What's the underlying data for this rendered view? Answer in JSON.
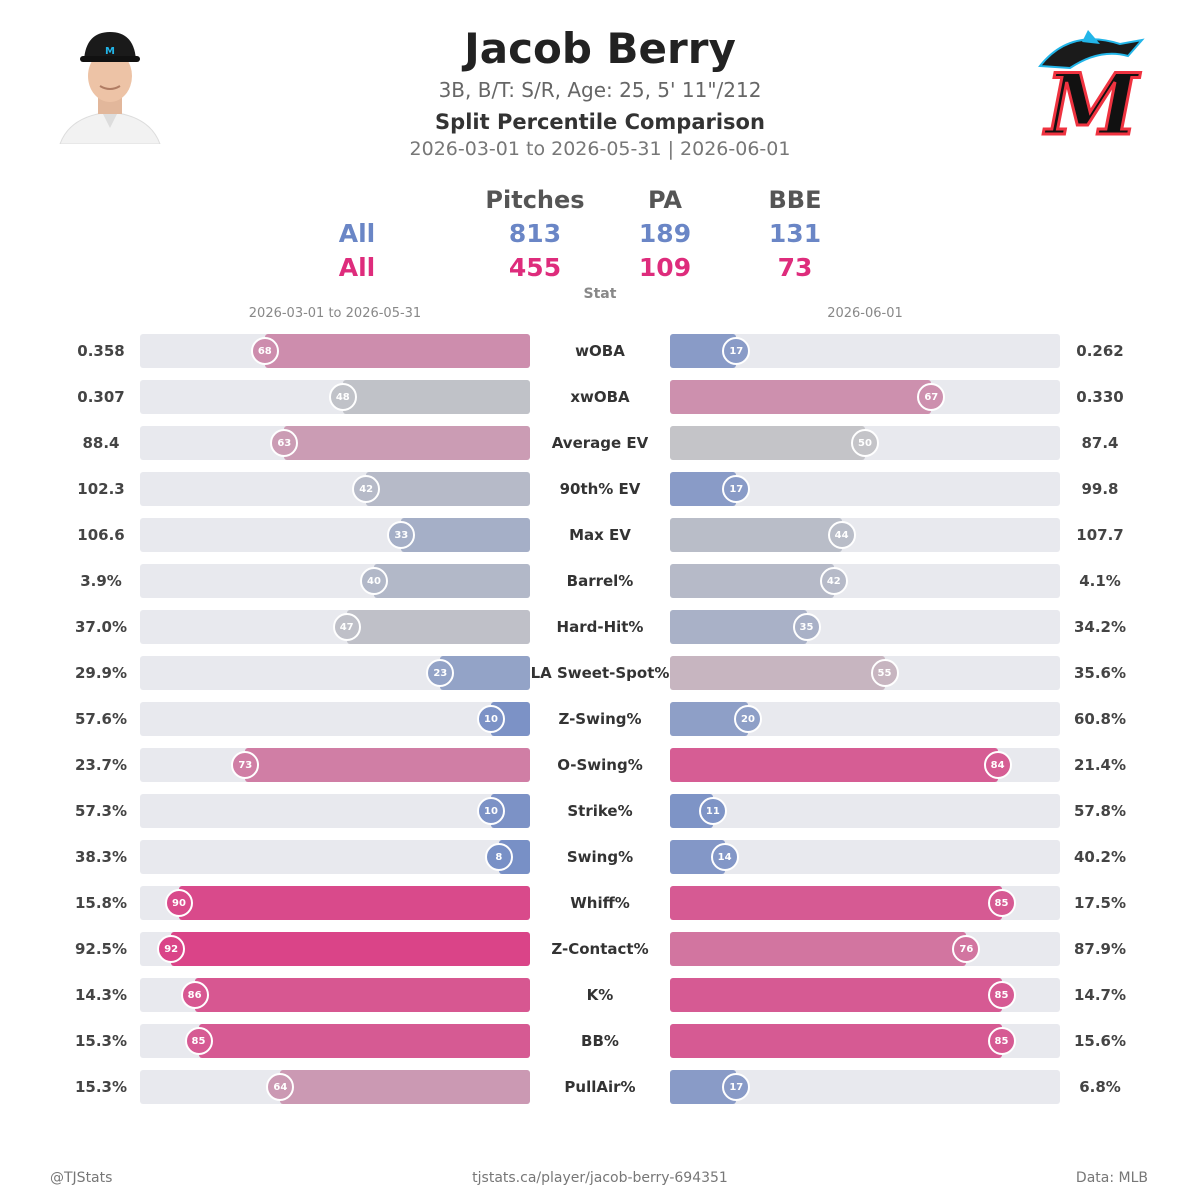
{
  "header": {
    "player_name": "Jacob Berry",
    "player_info": "3B, B/T: S/R, Age: 25, 5' 11\"/212",
    "subtitle": "Split Percentile Comparison",
    "date_line": "2026-03-01 to 2026-05-31  |  2026-06-01"
  },
  "counts": {
    "columns": [
      "Pitches",
      "PA",
      "BBE"
    ],
    "rows": [
      {
        "label": "All",
        "values": [
          "813",
          "189",
          "131"
        ],
        "color": "#6a86c6"
      },
      {
        "label": "All",
        "values": [
          "455",
          "109",
          "73"
        ],
        "color": "#de2c7c"
      }
    ]
  },
  "colors": {
    "low": "#6a86c6",
    "mid": "#c4c4c8",
    "high": "#de2c7c",
    "track": "#e8e9ee"
  },
  "chart_data": {
    "type": "bar",
    "stat_header": "Stat",
    "left_label": "2026-03-01 to 2026-05-31",
    "right_label": "2026-06-01",
    "xlim": [
      0,
      100
    ],
    "stats": [
      {
        "stat": "wOBA",
        "left_value": "0.358",
        "left_pct": 68,
        "right_value": "0.262",
        "right_pct": 17
      },
      {
        "stat": "xwOBA",
        "left_value": "0.307",
        "left_pct": 48,
        "right_value": "0.330",
        "right_pct": 67
      },
      {
        "stat": "Average EV",
        "left_value": "88.4",
        "left_pct": 63,
        "right_value": "87.4",
        "right_pct": 50
      },
      {
        "stat": "90th% EV",
        "left_value": "102.3",
        "left_pct": 42,
        "right_value": "99.8",
        "right_pct": 17
      },
      {
        "stat": "Max EV",
        "left_value": "106.6",
        "left_pct": 33,
        "right_value": "107.7",
        "right_pct": 44
      },
      {
        "stat": "Barrel%",
        "left_value": "3.9%",
        "left_pct": 40,
        "right_value": "4.1%",
        "right_pct": 42
      },
      {
        "stat": "Hard-Hit%",
        "left_value": "37.0%",
        "left_pct": 47,
        "right_value": "34.2%",
        "right_pct": 35
      },
      {
        "stat": "LA Sweet-Spot%",
        "left_value": "29.9%",
        "left_pct": 23,
        "right_value": "35.6%",
        "right_pct": 55
      },
      {
        "stat": "Z-Swing%",
        "left_value": "57.6%",
        "left_pct": 10,
        "right_value": "60.8%",
        "right_pct": 20
      },
      {
        "stat": "O-Swing%",
        "left_value": "23.7%",
        "left_pct": 73,
        "right_value": "21.4%",
        "right_pct": 84
      },
      {
        "stat": "Strike%",
        "left_value": "57.3%",
        "left_pct": 10,
        "right_value": "57.8%",
        "right_pct": 11
      },
      {
        "stat": "Swing%",
        "left_value": "38.3%",
        "left_pct": 8,
        "right_value": "40.2%",
        "right_pct": 14
      },
      {
        "stat": "Whiff%",
        "left_value": "15.8%",
        "left_pct": 90,
        "right_value": "17.5%",
        "right_pct": 85
      },
      {
        "stat": "Z-Contact%",
        "left_value": "92.5%",
        "left_pct": 92,
        "right_value": "87.9%",
        "right_pct": 76
      },
      {
        "stat": "K%",
        "left_value": "14.3%",
        "left_pct": 86,
        "right_value": "14.7%",
        "right_pct": 85
      },
      {
        "stat": "BB%",
        "left_value": "15.3%",
        "left_pct": 85,
        "right_value": "15.6%",
        "right_pct": 85
      },
      {
        "stat": "PullAir%",
        "left_value": "15.3%",
        "left_pct": 64,
        "right_value": "6.8%",
        "right_pct": 17
      }
    ]
  },
  "footer": {
    "left": "@TJStats",
    "center": "tjstats.ca/player/jacob-berry-694351",
    "right": "Data: MLB"
  },
  "logos": {
    "team_logo": "M",
    "team_icon": "marlins-logo-icon",
    "headshot_icon": "player-headshot-icon"
  }
}
